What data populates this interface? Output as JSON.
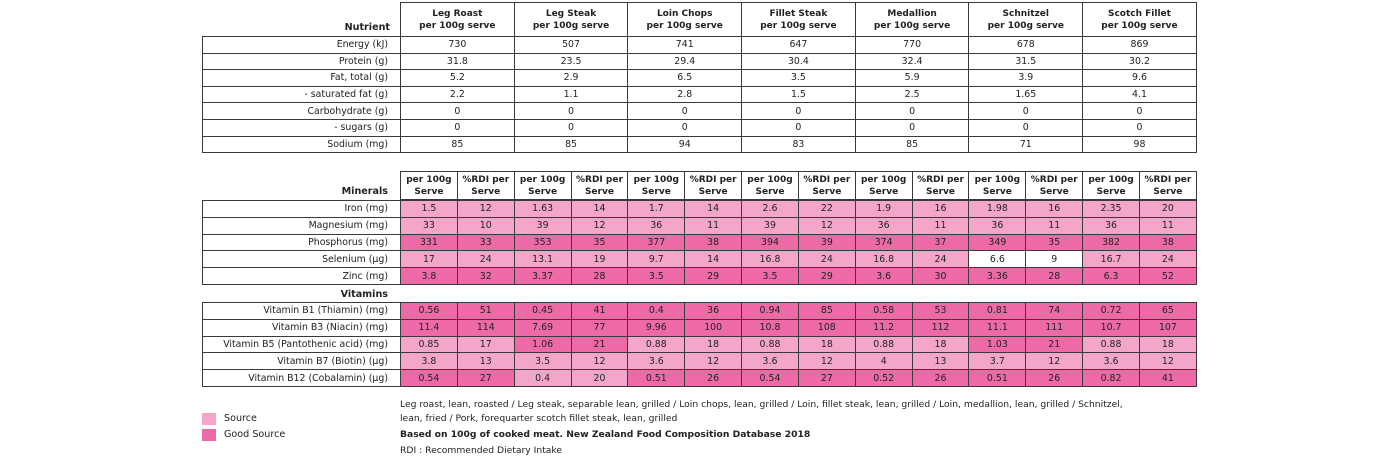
{
  "colors": {
    "source": "#f4a6ca",
    "good_source": "#ee6aa6"
  },
  "nutrient_section": {
    "title": "Nutrient",
    "cuts": [
      {
        "name": "Leg Roast",
        "serve": "per 100g serve"
      },
      {
        "name": "Leg Steak",
        "serve": "per 100g serve"
      },
      {
        "name": "Loin Chops",
        "serve": "per 100g serve"
      },
      {
        "name": "Fillet Steak",
        "serve": "per 100g serve"
      },
      {
        "name": "Medallion",
        "serve": "per 100g serve"
      },
      {
        "name": "Schnitzel",
        "serve": "per 100g serve"
      },
      {
        "name": "Scotch Fillet",
        "serve": "per 100g serve"
      }
    ],
    "rows": [
      {
        "label": "Energy (kJ)",
        "values": [
          "730",
          "507",
          "741",
          "647",
          "770",
          "678",
          "869"
        ]
      },
      {
        "label": "Protein (g)",
        "values": [
          "31.8",
          "23.5",
          "29.4",
          "30.4",
          "32.4",
          "31.5",
          "30.2"
        ]
      },
      {
        "label": "Fat, total (g)",
        "values": [
          "5.2",
          "2.9",
          "6.5",
          "3.5",
          "5.9",
          "3.9",
          "9.6"
        ]
      },
      {
        "label": "-  saturated fat (g)",
        "values": [
          "2.2",
          "1.1",
          "2.8",
          "1.5",
          "2.5",
          "1.65",
          "4.1"
        ]
      },
      {
        "label": "Carbohydrate (g)",
        "values": [
          "0",
          "0",
          "0",
          "0",
          "0",
          "0",
          "0"
        ]
      },
      {
        "label": "- sugars (g)",
        "values": [
          "0",
          "0",
          "0",
          "0",
          "0",
          "0",
          "0"
        ]
      },
      {
        "label": "Sodium (mg)",
        "values": [
          "85",
          "85",
          "94",
          "83",
          "85",
          "71",
          "98"
        ]
      }
    ]
  },
  "mineral_section": {
    "title": "Minerals",
    "col_headers": {
      "per": [
        "per 100g",
        "Serve"
      ],
      "rdi": [
        "%RDI per",
        "Serve"
      ]
    },
    "rows": [
      {
        "label": "Iron (mg)",
        "cells": [
          [
            "1.5",
            "12",
            "src"
          ],
          [
            "1.63",
            "14",
            "src"
          ],
          [
            "1.7",
            "14",
            "src"
          ],
          [
            "2.6",
            "22",
            "src"
          ],
          [
            "1.9",
            "16",
            "src"
          ],
          [
            "1.98",
            "16",
            "src"
          ],
          [
            "2.35",
            "20",
            "src"
          ]
        ]
      },
      {
        "label": "Magnesium (mg)",
        "cells": [
          [
            "33",
            "10",
            "src"
          ],
          [
            "39",
            "12",
            "src"
          ],
          [
            "36",
            "11",
            "src"
          ],
          [
            "39",
            "12",
            "src"
          ],
          [
            "36",
            "11",
            "src"
          ],
          [
            "36",
            "11",
            "src"
          ],
          [
            "36",
            "11",
            "src"
          ]
        ]
      },
      {
        "label": "Phosphorus (mg)",
        "cells": [
          [
            "331",
            "33",
            "good"
          ],
          [
            "353",
            "35",
            "good"
          ],
          [
            "377",
            "38",
            "good"
          ],
          [
            "394",
            "39",
            "good"
          ],
          [
            "374",
            "37",
            "good"
          ],
          [
            "349",
            "35",
            "good"
          ],
          [
            "382",
            "38",
            "good"
          ]
        ]
      },
      {
        "label": "Selenium (µg)",
        "cells": [
          [
            "17",
            "24",
            "src"
          ],
          [
            "13.1",
            "19",
            "src"
          ],
          [
            "9.7",
            "14",
            "src"
          ],
          [
            "16.8",
            "24",
            "src"
          ],
          [
            "16.8",
            "24",
            "src"
          ],
          [
            "6.6",
            "9",
            "none"
          ],
          [
            "16.7",
            "24",
            "src"
          ]
        ]
      },
      {
        "label": "Zinc (mg)",
        "cells": [
          [
            "3.8",
            "32",
            "good"
          ],
          [
            "3.37",
            "28",
            "good"
          ],
          [
            "3.5",
            "29",
            "good"
          ],
          [
            "3.5",
            "29",
            "good"
          ],
          [
            "3.6",
            "30",
            "good"
          ],
          [
            "3.36",
            "28",
            "good"
          ],
          [
            "6.3",
            "52",
            "good"
          ]
        ]
      }
    ]
  },
  "vitamin_section": {
    "title": "Vitamins",
    "rows": [
      {
        "label": "Vitamin B1 (Thiamin) (mg)",
        "cells": [
          [
            "0.56",
            "51",
            "good"
          ],
          [
            "0.45",
            "41",
            "good"
          ],
          [
            "0.4",
            "36",
            "good"
          ],
          [
            "0.94",
            "85",
            "good"
          ],
          [
            "0.58",
            "53",
            "good"
          ],
          [
            "0.81",
            "74",
            "good"
          ],
          [
            "0.72",
            "65",
            "good"
          ]
        ]
      },
      {
        "label": "Vitamin B3 (Niacin) (mg)",
        "cells": [
          [
            "11.4",
            "114",
            "good"
          ],
          [
            "7.69",
            "77",
            "good"
          ],
          [
            "9.96",
            "100",
            "good"
          ],
          [
            "10.8",
            "108",
            "good"
          ],
          [
            "11.2",
            "112",
            "good"
          ],
          [
            "11.1",
            "111",
            "good"
          ],
          [
            "10.7",
            "107",
            "good"
          ]
        ]
      },
      {
        "label": "Vitamin B5 (Pantothenic acid) (mg)",
        "cells": [
          [
            "0.85",
            "17",
            "src"
          ],
          [
            "1.06",
            "21",
            "good"
          ],
          [
            "0.88",
            "18",
            "src"
          ],
          [
            "0.88",
            "18",
            "src"
          ],
          [
            "0.88",
            "18",
            "src"
          ],
          [
            "1.03",
            "21",
            "good"
          ],
          [
            "0.88",
            "18",
            "src"
          ]
        ]
      },
      {
        "label": "Vitamin B7 (Biotin)  (µg)",
        "cells": [
          [
            "3.8",
            "13",
            "src"
          ],
          [
            "3.5",
            "12",
            "src"
          ],
          [
            "3.6",
            "12",
            "src"
          ],
          [
            "3.6",
            "12",
            "src"
          ],
          [
            "4",
            "13",
            "src"
          ],
          [
            "3.7",
            "12",
            "src"
          ],
          [
            "3.6",
            "12",
            "src"
          ]
        ]
      },
      {
        "label": "Vitamin B12 (Cobalamin)  (µg)",
        "cells": [
          [
            "0.54",
            "27",
            "good"
          ],
          [
            "0.4",
            "20",
            "src"
          ],
          [
            "0.51",
            "26",
            "good"
          ],
          [
            "0.54",
            "27",
            "good"
          ],
          [
            "0.52",
            "26",
            "good"
          ],
          [
            "0.51",
            "26",
            "good"
          ],
          [
            "0.82",
            "41",
            "good"
          ]
        ]
      }
    ]
  },
  "legend": {
    "source": "Source",
    "good_source": "Good Source"
  },
  "footnotes": {
    "line1": "Leg roast, lean, roasted / Leg steak, separable lean, grilled / Loin chops, lean, grilled / Loin, fillet steak, lean, grilled / Loin, medallion, lean, grilled / Schnitzel,",
    "line2": "lean, fried / Pork, forequarter scotch fillet steak, lean, grilled",
    "line3": "Based on 100g of cooked meat. New Zealand Food Composition Database 2018",
    "line4": "RDI : Recommended Dietary Intake"
  }
}
